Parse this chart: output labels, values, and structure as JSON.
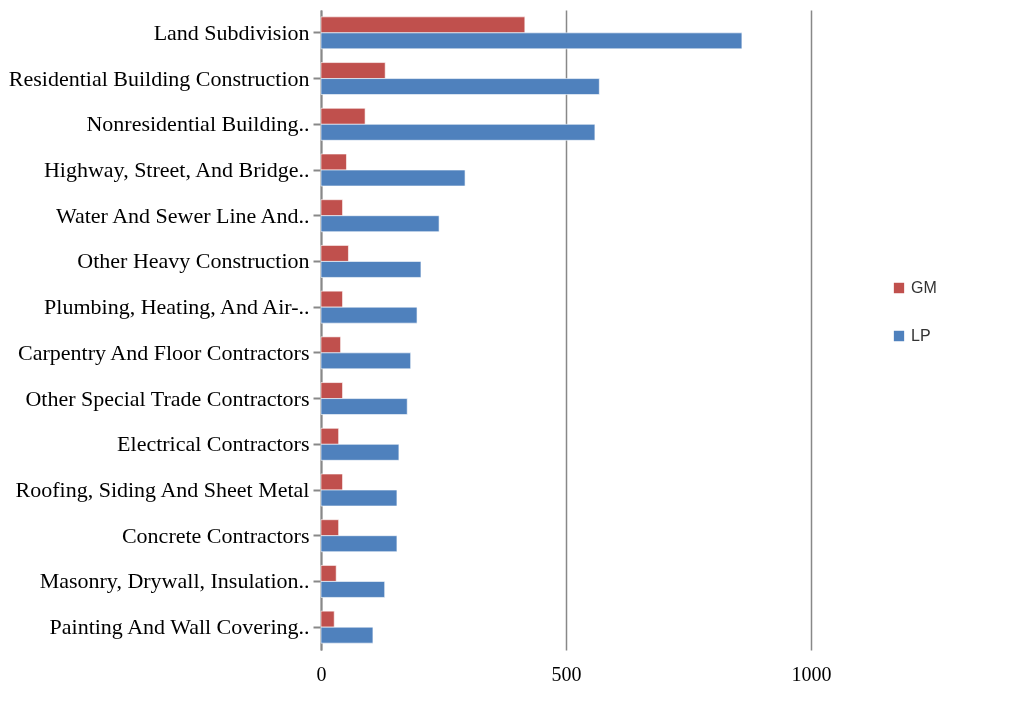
{
  "chart_data": {
    "type": "bar",
    "orientation": "horizontal",
    "categories": [
      "Land Subdivision",
      "Residential Building Construction",
      "Nonresidential Building..",
      "Highway, Street, And Bridge..",
      "Water And Sewer Line And..",
      "Other Heavy Construction",
      "Plumbing, Heating, And Air-..",
      "Carpentry And Floor Contractors",
      "Other Special Trade Contractors",
      "Electrical Contractors",
      "Roofing, Siding And Sheet Metal",
      "Concrete Contractors",
      "Masonry, Drywall, Insulation..",
      "Painting And Wall Covering.."
    ],
    "series": [
      {
        "name": "GM",
        "color": "#c0504d",
        "values": [
          416,
          131,
          90,
          52,
          44,
          56,
          44,
          40,
          44,
          36,
          44,
          36,
          31,
          27
        ]
      },
      {
        "name": "LP",
        "color": "#4f81bd",
        "values": [
          859,
          568,
          559,
          294,
          241,
          204,
          196,
          183,
          176,
          159,
          155,
          155,
          130,
          106
        ]
      }
    ],
    "xlim": [
      0,
      1000
    ],
    "xticks": [
      0,
      500,
      1000
    ],
    "grid": "x",
    "legend": "right"
  }
}
